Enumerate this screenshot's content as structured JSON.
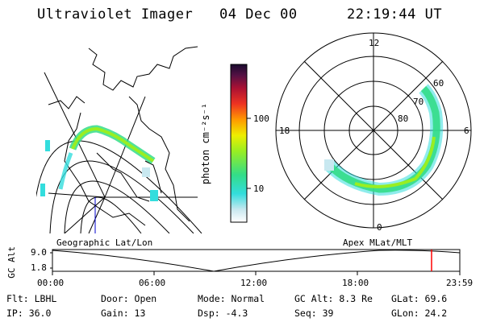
{
  "header": {
    "title": "Ultraviolet Imager",
    "date": "04 Dec 00",
    "time": "22:19:44 UT"
  },
  "colorbar": {
    "unit_label": "photon cm⁻²s⁻¹",
    "ticks": [
      "100",
      "10"
    ],
    "scale": "log"
  },
  "map_left": {
    "caption": "Geographic Lat/Lon"
  },
  "polar_right": {
    "caption": "Apex  MLat/MLT",
    "mlt_labels": [
      "12",
      "18",
      "6",
      "0"
    ],
    "lat_labels": [
      "60",
      "70",
      "80"
    ]
  },
  "timeline": {
    "ylabel": "GC Alt",
    "yticks": [
      "9.0",
      "1.8"
    ],
    "xticks": [
      "00:00",
      "06:00",
      "12:00",
      "18:00",
      "23:59"
    ],
    "marker_time": "22:19:44"
  },
  "info": {
    "filter": "Flt: LBHL",
    "door": "Door: Open",
    "mode": "Mode: Normal",
    "gc_alt": "GC Alt: 8.3 Re",
    "glat": "GLat:  69.6",
    "ip": "IP: 36.0",
    "gain": "Gain: 13",
    "dsp": "Dsp:    -4.3",
    "seq": "Seq: 39",
    "glon": "GLon:  24.2"
  },
  "colors": {
    "marker": "#ff0000",
    "aurora_low": "#00cccc",
    "aurora_mid": "#33dd66",
    "aurora_high": "#88ee00"
  }
}
